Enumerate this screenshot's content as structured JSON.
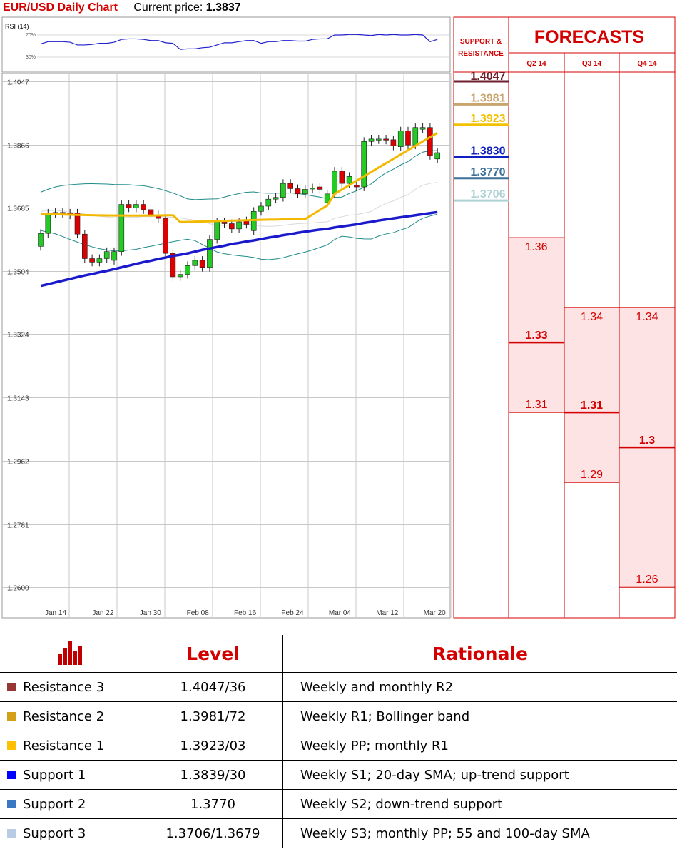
{
  "header": {
    "title": "EUR/USD Daily Chart",
    "price_label": "Current price:",
    "price_value": "1.3837"
  },
  "rsi": {
    "label": "RSI (14)",
    "levels": [
      "70%",
      "30%"
    ],
    "values": [
      54,
      58,
      58,
      58,
      57,
      52,
      52,
      53,
      55,
      55,
      57,
      62,
      63,
      63,
      62,
      60,
      60,
      56,
      55,
      44,
      45,
      45,
      47,
      48,
      52,
      56,
      56,
      58,
      60,
      60,
      55,
      58,
      58,
      60,
      60,
      59,
      59,
      62,
      63,
      63,
      70,
      70,
      71,
      71,
      70,
      69,
      71,
      70,
      71,
      70,
      70,
      71,
      70,
      58,
      62
    ]
  },
  "chart_data": {
    "type": "candlestick",
    "title": "EUR/USD Daily Chart",
    "x_labels": [
      "Jan 14",
      "Jan 22",
      "Jan 30",
      "Feb 08",
      "Feb 16",
      "Feb 24",
      "Mar 04",
      "Mar 12",
      "Mar 20"
    ],
    "ylim": [
      1.2525,
      1.4047
    ],
    "y_ticks": [
      1.4047,
      1.3866,
      1.3685,
      1.3504,
      1.3324,
      1.3143,
      1.2962,
      1.2781,
      1.26
    ],
    "candles_oc": [
      [
        1.3575,
        1.3612
      ],
      [
        1.3612,
        1.367
      ],
      [
        1.3668,
        1.3672
      ],
      [
        1.3672,
        1.3668
      ],
      [
        1.367,
        1.3665
      ],
      [
        1.367,
        1.361
      ],
      [
        1.361,
        1.354
      ],
      [
        1.354,
        1.353
      ],
      [
        1.353,
        1.354
      ],
      [
        1.354,
        1.356
      ],
      [
        1.3535,
        1.356
      ],
      [
        1.356,
        1.3695
      ],
      [
        1.3695,
        1.3685
      ],
      [
        1.3685,
        1.3695
      ],
      [
        1.3695,
        1.368
      ],
      [
        1.368,
        1.3665
      ],
      [
        1.3665,
        1.3655
      ],
      [
        1.3655,
        1.3555
      ],
      [
        1.3555,
        1.3488
      ],
      [
        1.3488,
        1.3495
      ],
      [
        1.3495,
        1.352
      ],
      [
        1.352,
        1.3535
      ],
      [
        1.3535,
        1.3515
      ],
      [
        1.3515,
        1.3595
      ],
      [
        1.3595,
        1.3645
      ],
      [
        1.3645,
        1.364
      ],
      [
        1.364,
        1.3625
      ],
      [
        1.3625,
        1.3645
      ],
      [
        1.3648,
        1.3638
      ],
      [
        1.362,
        1.3675
      ],
      [
        1.3675,
        1.369
      ],
      [
        1.369,
        1.371
      ],
      [
        1.371,
        1.3715
      ],
      [
        1.3715,
        1.3755
      ],
      [
        1.3755,
        1.374
      ],
      [
        1.374,
        1.3725
      ],
      [
        1.3725,
        1.3738
      ],
      [
        1.374,
        1.3742
      ],
      [
        1.3745,
        1.3738
      ],
      [
        1.37,
        1.3725
      ],
      [
        1.3725,
        1.379
      ],
      [
        1.379,
        1.3755
      ],
      [
        1.3755,
        1.3775
      ],
      [
        1.375,
        1.3745
      ],
      [
        1.3745,
        1.3875
      ],
      [
        1.3875,
        1.3882
      ],
      [
        1.388,
        1.3882
      ],
      [
        1.3882,
        1.3879
      ],
      [
        1.388,
        1.3862
      ],
      [
        1.386,
        1.3905
      ],
      [
        1.3905,
        1.3865
      ],
      [
        1.3865,
        1.3915
      ],
      [
        1.391,
        1.3915
      ],
      [
        1.3915,
        1.3835
      ],
      [
        1.3825,
        1.3843
      ]
    ],
    "sma20": [
      1.3675,
      1.3677,
      1.3678,
      1.3676,
      1.3673,
      1.367,
      1.3667,
      1.3664,
      1.3661,
      1.3659,
      1.3657,
      1.3657,
      1.3658,
      1.3658,
      1.366,
      1.366,
      1.366,
      1.3659,
      1.3658,
      1.3656,
      1.3653,
      1.365,
      1.3645,
      1.364,
      1.3635,
      1.3635,
      1.3636,
      1.3637,
      1.3638,
      1.3637,
      1.3633,
      1.3632,
      1.3633,
      1.3635,
      1.3638,
      1.364,
      1.3641,
      1.3642,
      1.3644,
      1.3645,
      1.3655,
      1.366,
      1.3664,
      1.3666,
      1.367,
      1.3675,
      1.3688,
      1.3698,
      1.3705,
      1.3715,
      1.3723,
      1.3738,
      1.375,
      1.3755,
      1.3758
    ],
    "sma100": [
      1.3462,
      1.3467,
      1.3472,
      1.3477,
      1.3482,
      1.3487,
      1.3492,
      1.3496,
      1.3501,
      1.3505,
      1.351,
      1.3515,
      1.352,
      1.3525,
      1.353,
      1.3534,
      1.3539,
      1.3543,
      1.3548,
      1.3551,
      1.3555,
      1.356,
      1.3565,
      1.3569,
      1.3573,
      1.3577,
      1.3582,
      1.3585,
      1.3589,
      1.3592,
      1.3596,
      1.36,
      1.3603,
      1.3607,
      1.361,
      1.3614,
      1.3617,
      1.362,
      1.3623,
      1.3625,
      1.3629,
      1.3632,
      1.3635,
      1.3638,
      1.3642,
      1.3645,
      1.3649,
      1.3652,
      1.3655,
      1.3658,
      1.3661,
      1.3664,
      1.3667,
      1.367,
      1.3673
    ],
    "forecast_columns": [
      {
        "label": "Q2 14",
        "range": [
          1.31,
          1.36
        ],
        "mid": 1.33,
        "labels": [
          "1.36",
          "1.33",
          "1.31"
        ]
      },
      {
        "label": "Q3 14",
        "range": [
          1.29,
          1.34
        ],
        "mid": 1.31,
        "labels": [
          "1.34",
          "1.31",
          "1.29"
        ]
      },
      {
        "label": "Q4 14",
        "range": [
          1.26,
          1.34
        ],
        "mid": 1.3,
        "labels": [
          "1.34",
          "1.3",
          "1.26"
        ]
      }
    ],
    "support_resistance": [
      {
        "value": 1.4047,
        "label": "1.4047",
        "color": "#6d1f2c"
      },
      {
        "value": 1.3981,
        "label": "1.3981",
        "color": "#c9a56e"
      },
      {
        "value": 1.3923,
        "label": "1.3923",
        "color": "#f2c200"
      },
      {
        "value": 1.383,
        "label": "1.3830",
        "color": "#1020c0"
      },
      {
        "value": 1.377,
        "label": "1.3770",
        "color": "#3d7098"
      },
      {
        "value": 1.3706,
        "label": "1.3706",
        "color": "#aed2d4"
      }
    ]
  },
  "forecast_panel": {
    "title": "FORECASTS",
    "sr_label_1": "SUPPORT &",
    "sr_label_2": "RESISTANCE"
  },
  "table": {
    "headers": [
      "Level",
      "Rationale"
    ],
    "rows": [
      {
        "name": "Resistance 3",
        "level": "1.4047/36",
        "rationale": "Weekly and monthly R2",
        "color": "#953735"
      },
      {
        "name": "Resistance 2",
        "level": "1.3981/72",
        "rationale": "Weekly R1; Bollinger band",
        "color": "#d4a017"
      },
      {
        "name": "Resistance 1",
        "level": "1.3923/03",
        "rationale": "Weekly PP; monthly R1",
        "color": "#ffc000"
      },
      {
        "name": "Support 1",
        "level": "1.3839/30",
        "rationale": "Weekly S1; 20-day SMA; up-trend support",
        "color": "#0000ff"
      },
      {
        "name": "Support 2",
        "level": "1.3770",
        "rationale": "Weekly S2; down-trend support",
        "color": "#3b78c4"
      },
      {
        "name": "Support 3",
        "level": "1.3706/1.3679",
        "rationale": "Weekly S3; monthly PP; 55 and 100-day SMA",
        "color": "#b8cce4"
      }
    ]
  }
}
